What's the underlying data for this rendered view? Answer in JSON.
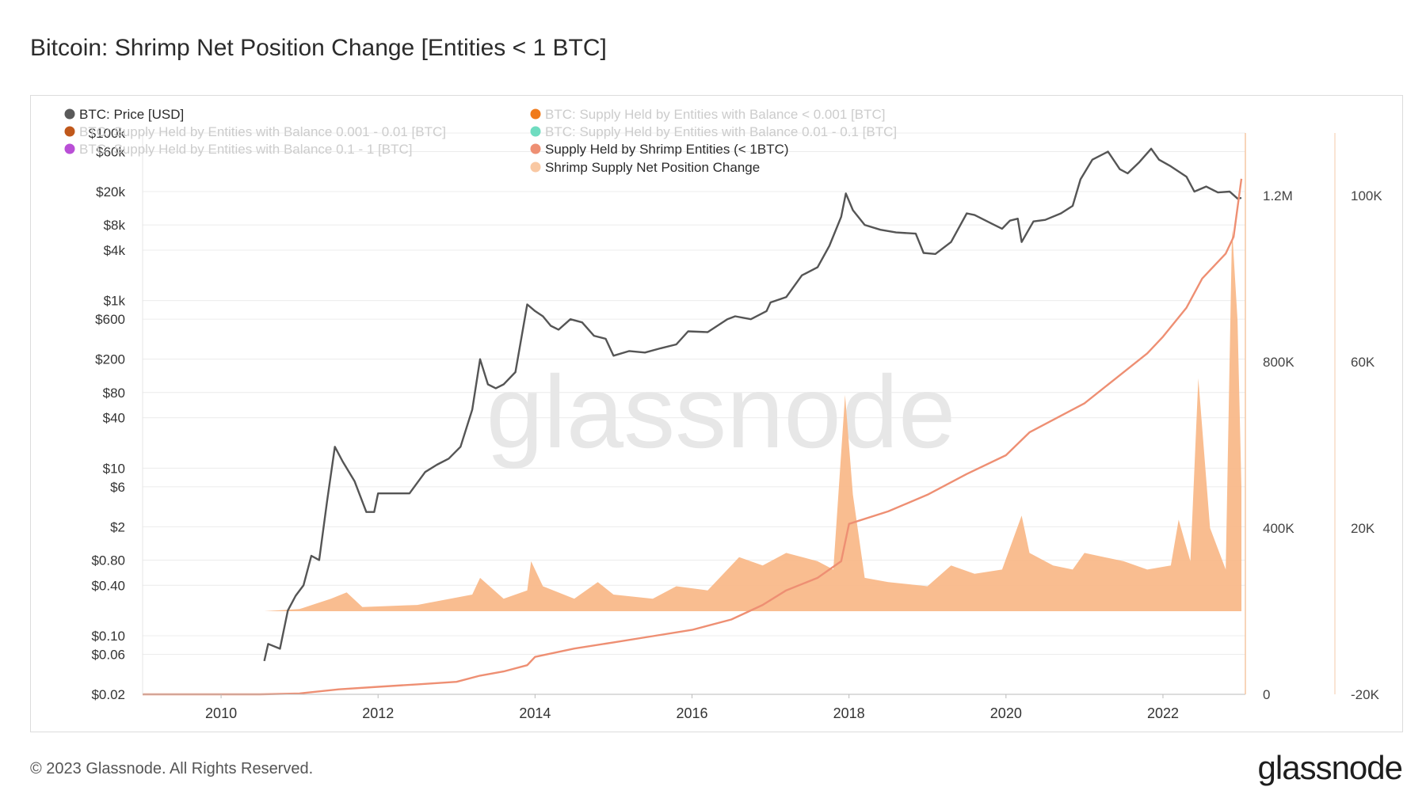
{
  "page": {
    "title": "Bitcoin: Shrimp Net Position Change [Entities < 1 BTC]",
    "footer": "© 2023 Glassnode. All Rights Reserved.",
    "brand": "glassnode",
    "watermark": "glassnode"
  },
  "chart_data": {
    "type": "line",
    "title": "Bitcoin: Shrimp Net Position Change [Entities < 1 BTC]",
    "legend": [
      {
        "label": "BTC: Price [USD]",
        "color": "#5a5a5a",
        "faded": false
      },
      {
        "label": "BTC: Supply Held by Entities with Balance < 0.001 [BTC]",
        "color": "#f07a1a",
        "faded": true
      },
      {
        "label": "BTC: Supply Held by Entities with Balance 0.001 - 0.01 [BTC]",
        "color": "#c0581b",
        "faded": true
      },
      {
        "label": "BTC: Supply Held by Entities with Balance 0.01 - 0.1 [BTC]",
        "color": "#6fdcc0",
        "faded": true
      },
      {
        "label": "BTC: Supply Held by Entities with Balance 0.1 - 1 [BTC]",
        "color": "#b94fd6",
        "faded": true
      },
      {
        "label": "Supply Held by Shrimp Entities (< 1BTC)",
        "color": "#ee8f73",
        "faded": false
      },
      {
        "label": "Shrimp Supply Net Position Change",
        "color": "#f9c8a3",
        "faded": false
      }
    ],
    "legend_placement": "top-left",
    "grid": true,
    "x_axis": {
      "ticks": [
        "2010",
        "2012",
        "2014",
        "2016",
        "2018",
        "2020",
        "2022"
      ],
      "range": [
        2009.0,
        2023.05
      ]
    },
    "y_left": {
      "scale": "log",
      "ticks": [
        "$100k",
        "$60k",
        "$20k",
        "$8k",
        "$4k",
        "$1k",
        "$600",
        "$200",
        "$80",
        "$40",
        "$10",
        "$6",
        "$2",
        "$0.80",
        "$0.40",
        "$0.10",
        "$0.06",
        "$0.02"
      ],
      "tick_values": [
        100000,
        60000,
        20000,
        8000,
        4000,
        1000,
        600,
        200,
        80,
        40,
        10,
        6,
        2,
        0.8,
        0.4,
        0.1,
        0.06,
        0.02
      ],
      "range": [
        0.02,
        100000
      ]
    },
    "y_right1": {
      "ticks": [
        "1.2M",
        "800K",
        "400K",
        "0"
      ],
      "tick_values": [
        1200000,
        800000,
        400000,
        0
      ],
      "range": [
        0,
        1350000
      ]
    },
    "y_right2": {
      "ticks": [
        "100K",
        "60K",
        "20K",
        "-20K"
      ],
      "tick_values": [
        100000,
        60000,
        20000,
        -20000
      ],
      "range": [
        -20000,
        115000
      ]
    },
    "series": [
      {
        "name": "BTC: Price [USD]",
        "axis": "left",
        "color": "#555555",
        "points": [
          [
            2010.55,
            0.05
          ],
          [
            2010.6,
            0.08
          ],
          [
            2010.75,
            0.07
          ],
          [
            2010.85,
            0.2
          ],
          [
            2010.95,
            0.3
          ],
          [
            2011.05,
            0.4
          ],
          [
            2011.15,
            0.9
          ],
          [
            2011.25,
            0.8
          ],
          [
            2011.35,
            4
          ],
          [
            2011.45,
            18
          ],
          [
            2011.55,
            12
          ],
          [
            2011.7,
            7
          ],
          [
            2011.85,
            3
          ],
          [
            2011.95,
            3
          ],
          [
            2012.0,
            5
          ],
          [
            2012.2,
            5
          ],
          [
            2012.4,
            5
          ],
          [
            2012.6,
            9
          ],
          [
            2012.75,
            11
          ],
          [
            2012.9,
            13
          ],
          [
            2013.05,
            18
          ],
          [
            2013.2,
            50
          ],
          [
            2013.3,
            200
          ],
          [
            2013.4,
            100
          ],
          [
            2013.5,
            90
          ],
          [
            2013.6,
            100
          ],
          [
            2013.75,
            140
          ],
          [
            2013.9,
            900
          ],
          [
            2014.0,
            750
          ],
          [
            2014.1,
            650
          ],
          [
            2014.2,
            500
          ],
          [
            2014.3,
            450
          ],
          [
            2014.45,
            600
          ],
          [
            2014.6,
            550
          ],
          [
            2014.75,
            380
          ],
          [
            2014.9,
            350
          ],
          [
            2015.0,
            220
          ],
          [
            2015.2,
            250
          ],
          [
            2015.4,
            240
          ],
          [
            2015.6,
            270
          ],
          [
            2015.8,
            300
          ],
          [
            2015.95,
            430
          ],
          [
            2016.2,
            420
          ],
          [
            2016.45,
            600
          ],
          [
            2016.55,
            650
          ],
          [
            2016.75,
            600
          ],
          [
            2016.95,
            750
          ],
          [
            2017.0,
            950
          ],
          [
            2017.2,
            1100
          ],
          [
            2017.4,
            2000
          ],
          [
            2017.6,
            2500
          ],
          [
            2017.75,
            4500
          ],
          [
            2017.9,
            10000
          ],
          [
            2017.96,
            19000
          ],
          [
            2018.05,
            12000
          ],
          [
            2018.2,
            8000
          ],
          [
            2018.4,
            7000
          ],
          [
            2018.6,
            6500
          ],
          [
            2018.85,
            6300
          ],
          [
            2018.95,
            3700
          ],
          [
            2019.1,
            3600
          ],
          [
            2019.3,
            5000
          ],
          [
            2019.5,
            11000
          ],
          [
            2019.6,
            10500
          ],
          [
            2019.85,
            8000
          ],
          [
            2019.95,
            7200
          ],
          [
            2020.05,
            9000
          ],
          [
            2020.15,
            9500
          ],
          [
            2020.2,
            5000
          ],
          [
            2020.35,
            8800
          ],
          [
            2020.5,
            9200
          ],
          [
            2020.7,
            11000
          ],
          [
            2020.85,
            13500
          ],
          [
            2020.95,
            28000
          ],
          [
            2021.1,
            48000
          ],
          [
            2021.3,
            60000
          ],
          [
            2021.45,
            37000
          ],
          [
            2021.55,
            33000
          ],
          [
            2021.7,
            45000
          ],
          [
            2021.85,
            65000
          ],
          [
            2021.95,
            48000
          ],
          [
            2022.1,
            40000
          ],
          [
            2022.3,
            30000
          ],
          [
            2022.4,
            20000
          ],
          [
            2022.55,
            23000
          ],
          [
            2022.7,
            19500
          ],
          [
            2022.85,
            20000
          ],
          [
            2022.95,
            16500
          ],
          [
            2023.0,
            16800
          ]
        ]
      },
      {
        "name": "Supply Held by Shrimp Entities (< 1BTC)",
        "axis": "right1",
        "color": "#ee8f73",
        "points": [
          [
            2009.0,
            0
          ],
          [
            2010.5,
            0
          ],
          [
            2011.0,
            2000
          ],
          [
            2011.5,
            12000
          ],
          [
            2012.0,
            18000
          ],
          [
            2012.5,
            24000
          ],
          [
            2013.0,
            30000
          ],
          [
            2013.3,
            45000
          ],
          [
            2013.6,
            55000
          ],
          [
            2013.9,
            70000
          ],
          [
            2014.0,
            90000
          ],
          [
            2014.5,
            110000
          ],
          [
            2015.0,
            125000
          ],
          [
            2015.5,
            140000
          ],
          [
            2016.0,
            155000
          ],
          [
            2016.5,
            180000
          ],
          [
            2016.9,
            215000
          ],
          [
            2017.2,
            250000
          ],
          [
            2017.6,
            280000
          ],
          [
            2017.9,
            320000
          ],
          [
            2018.0,
            410000
          ],
          [
            2018.5,
            440000
          ],
          [
            2019.0,
            480000
          ],
          [
            2019.5,
            530000
          ],
          [
            2020.0,
            575000
          ],
          [
            2020.3,
            630000
          ],
          [
            2021.0,
            700000
          ],
          [
            2021.4,
            760000
          ],
          [
            2021.8,
            820000
          ],
          [
            2022.0,
            860000
          ],
          [
            2022.3,
            930000
          ],
          [
            2022.5,
            1000000
          ],
          [
            2022.8,
            1060000
          ],
          [
            2022.9,
            1100000
          ],
          [
            2023.0,
            1240000
          ]
        ]
      },
      {
        "name": "Shrimp Supply Net Position Change",
        "axis": "right2",
        "color": "#f9b98a",
        "points": [
          [
            2010.55,
            0
          ],
          [
            2011.0,
            500
          ],
          [
            2011.4,
            3000
          ],
          [
            2011.6,
            4500
          ],
          [
            2011.8,
            1000
          ],
          [
            2012.5,
            1500
          ],
          [
            2013.2,
            4000
          ],
          [
            2013.3,
            8000
          ],
          [
            2013.6,
            3000
          ],
          [
            2013.9,
            5000
          ],
          [
            2013.95,
            12000
          ],
          [
            2014.1,
            6000
          ],
          [
            2014.5,
            3000
          ],
          [
            2014.8,
            7000
          ],
          [
            2015.0,
            4000
          ],
          [
            2015.5,
            3000
          ],
          [
            2015.8,
            6000
          ],
          [
            2016.2,
            5000
          ],
          [
            2016.6,
            13000
          ],
          [
            2016.9,
            11000
          ],
          [
            2017.2,
            14000
          ],
          [
            2017.6,
            12000
          ],
          [
            2017.8,
            10000
          ],
          [
            2017.95,
            52000
          ],
          [
            2018.05,
            28000
          ],
          [
            2018.2,
            8000
          ],
          [
            2018.5,
            7000
          ],
          [
            2019.0,
            6000
          ],
          [
            2019.3,
            11000
          ],
          [
            2019.6,
            9000
          ],
          [
            2019.95,
            10000
          ],
          [
            2020.2,
            23000
          ],
          [
            2020.3,
            14000
          ],
          [
            2020.6,
            11000
          ],
          [
            2020.85,
            10000
          ],
          [
            2021.0,
            14000
          ],
          [
            2021.5,
            12000
          ],
          [
            2021.8,
            10000
          ],
          [
            2022.1,
            11000
          ],
          [
            2022.2,
            22000
          ],
          [
            2022.35,
            12000
          ],
          [
            2022.45,
            56000
          ],
          [
            2022.6,
            20000
          ],
          [
            2022.8,
            10000
          ],
          [
            2022.88,
            92000
          ],
          [
            2022.95,
            70000
          ],
          [
            2023.0,
            30000
          ]
        ]
      }
    ]
  }
}
